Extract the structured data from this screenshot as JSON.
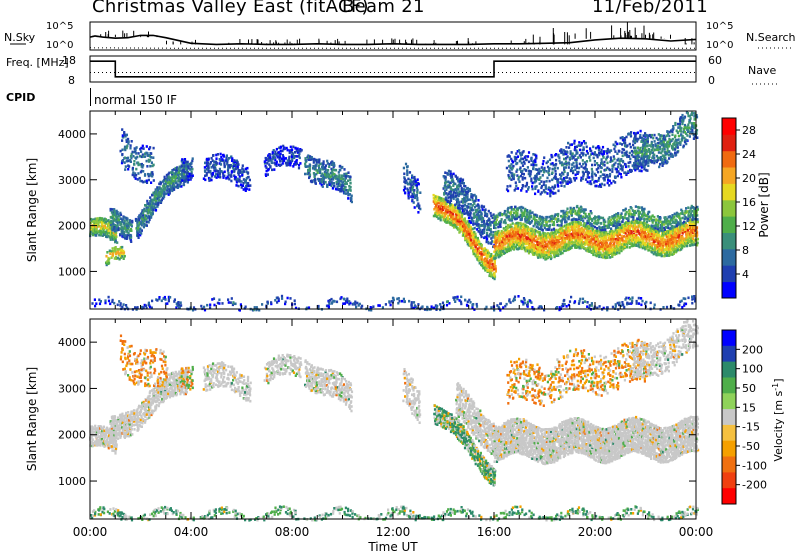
{
  "header": {
    "radar": "Christmas Valley East (fitACF)",
    "beam": "Beam 21",
    "date": "11/Feb/2011"
  },
  "colors": {
    "power_scale": [
      "#0000ff",
      "#1f3fb0",
      "#2c6aa0",
      "#3a8f7a",
      "#4fae4a",
      "#8cc63c",
      "#e6d820",
      "#f5a623",
      "#f06a10",
      "#e02010",
      "#ff0000"
    ],
    "velocity_scale": [
      "#0000ff",
      "#1f3fb0",
      "#2c8a6a",
      "#4fae4a",
      "#8fd25a",
      "#c8c8c8",
      "#f5c040",
      "#f5a000",
      "#f07010",
      "#f04010",
      "#ff0000"
    ],
    "ground_scatter": "#c8c8c8"
  },
  "chart_data": [
    {
      "type": "line",
      "panel": "noise",
      "ylabel_left": "N.Sky",
      "ylabel_right": "N.Search",
      "left_ticks": [
        "10^5",
        "10^0"
      ],
      "right_ticks": [
        "10^5",
        "10^0"
      ],
      "series": [
        {
          "name": "N.Sky",
          "style": "solid",
          "x": [
            0,
            0.2,
            0.5,
            1,
            1.5,
            2,
            2.5,
            3,
            4,
            5,
            6,
            7,
            8,
            9,
            10,
            11,
            12,
            13,
            14,
            15,
            16,
            17,
            18,
            19,
            20,
            21,
            22,
            23,
            24
          ],
          "y": [
            2.3,
            2.5,
            2.3,
            2.1,
            2.2,
            2.6,
            2.6,
            2.2,
            1.2,
            1.0,
            1.1,
            1.0,
            1.0,
            1.1,
            1.0,
            1.0,
            1.1,
            1.0,
            1.0,
            1.0,
            1.1,
            1.1,
            1.2,
            1.3,
            1.8,
            2.1,
            2.0,
            1.6,
            1.9
          ]
        },
        {
          "name": "N.Search",
          "style": "dotted",
          "x": [
            0,
            4,
            8,
            12,
            16,
            20,
            24
          ],
          "y": [
            0.4,
            0.3,
            0.3,
            0.3,
            0.3,
            0.3,
            0.3
          ]
        }
      ],
      "ylim": [
        0,
        5
      ]
    },
    {
      "type": "line",
      "panel": "frequency",
      "ylabel_left": "Freq. [MHz]",
      "ylabel_right": "Nave",
      "left_ticks": [
        "18",
        "8"
      ],
      "right_ticks": [
        "60",
        "0"
      ],
      "series": [
        {
          "name": "Freq. [MHz]",
          "style": "solid",
          "axis": "left",
          "x": [
            0,
            1,
            1,
            16,
            16,
            24
          ],
          "y": [
            16,
            16,
            10,
            10,
            16,
            16
          ]
        },
        {
          "name": "Nave",
          "style": "dotted",
          "axis": "right",
          "x": [
            0,
            24
          ],
          "y": [
            22,
            22
          ]
        }
      ],
      "ylim_left": [
        8,
        18
      ],
      "ylim_right": [
        0,
        60
      ]
    },
    {
      "type": "table",
      "panel": "cpid",
      "label": "CPID",
      "segments": [
        {
          "start": 0,
          "text": "normal 150 IF"
        }
      ]
    },
    {
      "type": "heatmap",
      "panel": "power",
      "ylabel": "Slant Range [km]",
      "yticks": [
        1000,
        2000,
        3000,
        4000
      ],
      "ylim": [
        180,
        4500
      ],
      "xlim": [
        0,
        24
      ],
      "colorbar_label": "Power [dB]",
      "colorbar_ticks": [
        4,
        8,
        12,
        16,
        20,
        24,
        28
      ],
      "colorbar_range": [
        0,
        30
      ],
      "regions": [
        {
          "x": [
            0,
            1
          ],
          "r_center": [
            2000,
            1800
          ],
          "halfwidth": 200,
          "value": 16,
          "density": 0.85
        },
        {
          "x": [
            0.6,
            1.3
          ],
          "r_center": [
            1200,
            1500
          ],
          "halfwidth": 150,
          "value": 18,
          "density": 0.6
        },
        {
          "x": [
            0.8,
            1.6
          ],
          "r_center": [
            2100,
            2050
          ],
          "halfwidth": 250,
          "value": 9,
          "density": 0.7
        },
        {
          "x": [
            1.2,
            2.5
          ],
          "r_center": [
            3800,
            3300
          ],
          "halfwidth": 400,
          "value": 7,
          "density": 0.3
        },
        {
          "x": [
            1.8,
            3.8
          ],
          "r_center": [
            2100,
            3300
          ],
          "halfwidth": 250,
          "value": 9,
          "density": 0.7
        },
        {
          "x": [
            3.6,
            4.0
          ],
          "r_center": [
            3300,
            3400
          ],
          "halfwidth": 250,
          "value": 6,
          "density": 0.6
        },
        {
          "x": [
            4.5,
            6.3
          ],
          "r_center": [
            3300,
            3150
          ],
          "halfwidth": 280,
          "value": 5,
          "density": 0.45
        },
        {
          "x": [
            6.9,
            8.3
          ],
          "r_center": [
            3350,
            3550
          ],
          "halfwidth": 220,
          "value": 4,
          "density": 0.4
        },
        {
          "x": [
            8.5,
            10.3
          ],
          "r_center": [
            3500,
            2800
          ],
          "halfwidth": 300,
          "value": 8,
          "density": 0.55
        },
        {
          "x": [
            12.4,
            13.0
          ],
          "r_center": [
            3000,
            2700
          ],
          "halfwidth": 350,
          "value": 6,
          "density": 0.45
        },
        {
          "x": [
            13.6,
            16.0
          ],
          "r_center": [
            2600,
            1200
          ],
          "halfwidth": 250,
          "value": 22,
          "density": 0.85
        },
        {
          "x": [
            14.0,
            16.0
          ],
          "r_center": [
            2900,
            2000
          ],
          "halfwidth": 350,
          "value": 7,
          "density": 0.5
        },
        {
          "x": [
            16.0,
            24.0
          ],
          "r_center": [
            1700,
            1800
          ],
          "halfwidth": 300,
          "value": 21,
          "density": 0.85
        },
        {
          "x": [
            16.0,
            24.0
          ],
          "r_center": [
            2200,
            2200
          ],
          "halfwidth": 150,
          "value": 11,
          "density": 0.55
        },
        {
          "x": [
            16.5,
            22.0
          ],
          "r_center": [
            3100,
            3600
          ],
          "halfwidth": 450,
          "value": 6,
          "density": 0.3
        },
        {
          "x": [
            21.5,
            24.0
          ],
          "r_center": [
            3500,
            4200
          ],
          "halfwidth": 350,
          "value": 9,
          "density": 0.45
        },
        {
          "x": [
            0,
            24
          ],
          "r_center": [
            300,
            300
          ],
          "halfwidth": 80,
          "value": 5,
          "density": 0.25
        }
      ]
    },
    {
      "type": "heatmap",
      "panel": "velocity",
      "ylabel": "Slant Range [km]",
      "yticks": [
        1000,
        2000,
        3000,
        4000
      ],
      "ylim": [
        180,
        4500
      ],
      "xlim": [
        0,
        24
      ],
      "xlabel": "Time UT",
      "xticks": [
        "00:00",
        "04:00",
        "08:00",
        "12:00",
        "16:00",
        "20:00",
        "00:00"
      ],
      "colorbar_label": "Velocity [m s^-1]",
      "colorbar_ticks": [
        200,
        100,
        50,
        15,
        -15,
        -50,
        -100,
        -200
      ],
      "regions": [
        {
          "x": [
            0,
            1
          ],
          "r_center": [
            2000,
            1800
          ],
          "halfwidth": 220,
          "value": 0,
          "density": 0.8,
          "ground": true
        },
        {
          "x": [
            0.8,
            3.8
          ],
          "r_center": [
            2100,
            3300
          ],
          "halfwidth": 280,
          "value": 0,
          "density": 0.7,
          "ground": true
        },
        {
          "x": [
            1.2,
            3.0
          ],
          "r_center": [
            3800,
            3300
          ],
          "halfwidth": 400,
          "value": -40,
          "density": 0.25
        },
        {
          "x": [
            3.6,
            4.0
          ],
          "r_center": [
            3300,
            3400
          ],
          "halfwidth": 250,
          "value": -20,
          "density": 0.5
        },
        {
          "x": [
            4.5,
            6.3
          ],
          "r_center": [
            3300,
            3150
          ],
          "halfwidth": 280,
          "value": 0,
          "density": 0.45,
          "ground": true
        },
        {
          "x": [
            6.9,
            8.3
          ],
          "r_center": [
            3350,
            3550
          ],
          "halfwidth": 220,
          "value": 0,
          "density": 0.45,
          "ground": true
        },
        {
          "x": [
            8.5,
            10.3
          ],
          "r_center": [
            3500,
            2800
          ],
          "halfwidth": 300,
          "value": 0,
          "density": 0.5,
          "ground": true
        },
        {
          "x": [
            12.4,
            13.0
          ],
          "r_center": [
            3000,
            2700
          ],
          "halfwidth": 350,
          "value": 0,
          "density": 0.45,
          "ground": true
        },
        {
          "x": [
            13.6,
            16.0
          ],
          "r_center": [
            2600,
            1200
          ],
          "halfwidth": 200,
          "value": 30,
          "density": 0.8
        },
        {
          "x": [
            14.5,
            16.0
          ],
          "r_center": [
            2700,
            2000
          ],
          "halfwidth": 350,
          "value": 0,
          "density": 0.6,
          "ground": true
        },
        {
          "x": [
            16.0,
            24.0
          ],
          "r_center": [
            1900,
            1950
          ],
          "halfwidth": 380,
          "value": 0,
          "density": 0.85,
          "ground": true
        },
        {
          "x": [
            16.5,
            22.0
          ],
          "r_center": [
            3100,
            3600
          ],
          "halfwidth": 450,
          "value": -30,
          "density": 0.25
        },
        {
          "x": [
            21.5,
            24.0
          ],
          "r_center": [
            3500,
            4200
          ],
          "halfwidth": 350,
          "value": 0,
          "density": 0.4,
          "ground": true
        },
        {
          "x": [
            0,
            24
          ],
          "r_center": [
            300,
            300
          ],
          "halfwidth": 90,
          "value": 40,
          "density": 0.35
        }
      ]
    }
  ]
}
